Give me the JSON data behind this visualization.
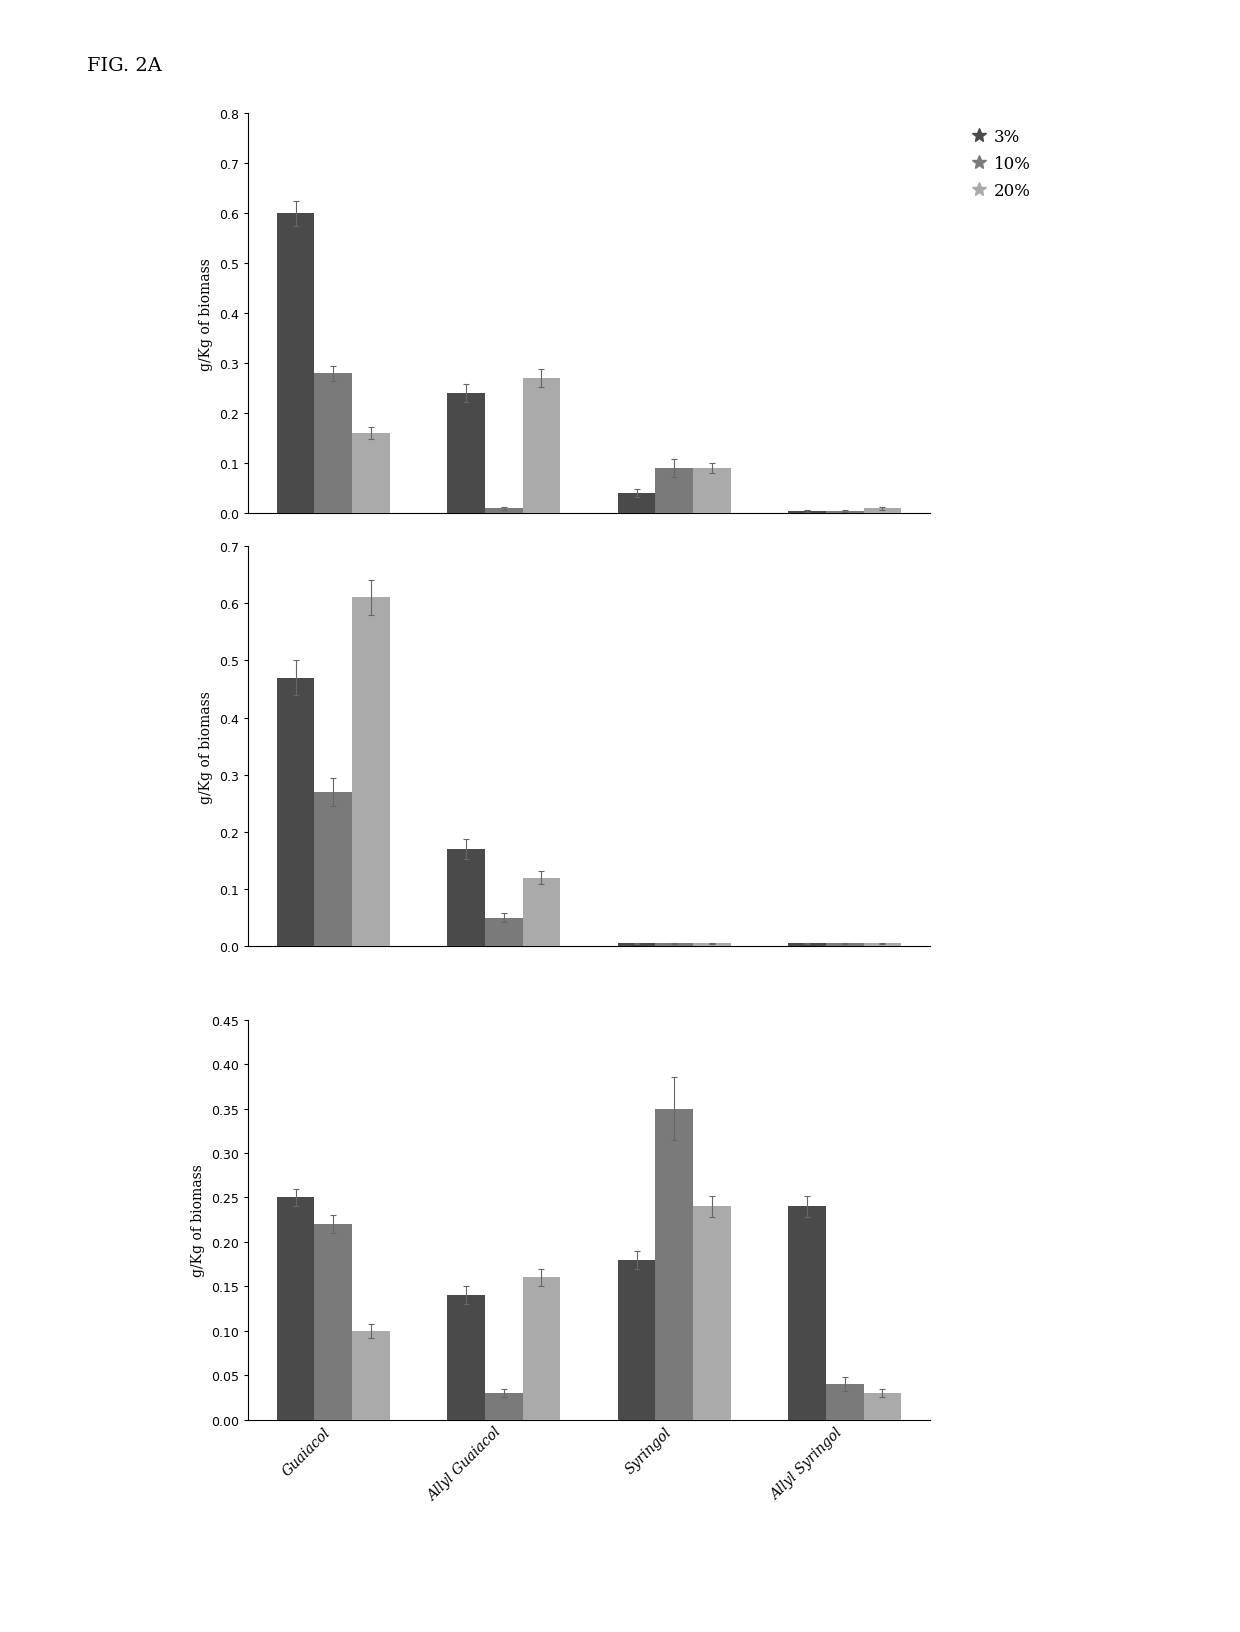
{
  "categories": [
    "Guaiacol",
    "Allyl Guaiacol",
    "Syringol",
    "Allyl Syringol"
  ],
  "legend_labels": [
    "3%",
    "10%",
    "20%"
  ],
  "bar_colors": [
    "#4a4a4a",
    "#7a7a7a",
    "#aaaaaa"
  ],
  "subplot1": {
    "ylim": [
      0,
      0.8
    ],
    "yticks": [
      0,
      0.1,
      0.2,
      0.3,
      0.4,
      0.5,
      0.6,
      0.7,
      0.8
    ],
    "ylabel": "g/Kg of biomass",
    "values": [
      [
        0.6,
        0.28,
        0.16
      ],
      [
        0.24,
        0.01,
        0.27
      ],
      [
        0.04,
        0.09,
        0.09
      ],
      [
        0.005,
        0.005,
        0.01
      ]
    ],
    "errors": [
      [
        0.025,
        0.015,
        0.012
      ],
      [
        0.018,
        0.003,
        0.018
      ],
      [
        0.008,
        0.018,
        0.01
      ],
      [
        0.002,
        0.002,
        0.003
      ]
    ]
  },
  "subplot2": {
    "ylim": [
      0,
      0.7
    ],
    "yticks": [
      0,
      0.1,
      0.2,
      0.3,
      0.4,
      0.5,
      0.6,
      0.7
    ],
    "ylabel": "g/Kg of biomass",
    "values": [
      [
        0.47,
        0.27,
        0.61
      ],
      [
        0.17,
        0.05,
        0.12
      ],
      [
        0.005,
        0.005,
        0.005
      ],
      [
        0.005,
        0.005,
        0.005
      ]
    ],
    "errors": [
      [
        0.03,
        0.025,
        0.03
      ],
      [
        0.018,
        0.008,
        0.012
      ],
      [
        0.001,
        0.001,
        0.001
      ],
      [
        0.001,
        0.001,
        0.001
      ]
    ]
  },
  "subplot3": {
    "ylim": [
      0,
      0.45
    ],
    "yticks": [
      0,
      0.05,
      0.1,
      0.15,
      0.2,
      0.25,
      0.3,
      0.35,
      0.4,
      0.45
    ],
    "ylabel": "g/Kg of biomass",
    "values": [
      [
        0.25,
        0.22,
        0.1
      ],
      [
        0.14,
        0.03,
        0.16
      ],
      [
        0.18,
        0.35,
        0.24
      ],
      [
        0.24,
        0.04,
        0.03
      ]
    ],
    "errors": [
      [
        0.01,
        0.01,
        0.008
      ],
      [
        0.01,
        0.005,
        0.01
      ],
      [
        0.01,
        0.035,
        0.012
      ],
      [
        0.012,
        0.008,
        0.005
      ]
    ]
  },
  "figure_label": "FIG. 2A",
  "background_color": "#ffffff",
  "bar_width": 0.22,
  "legend_marker": "*"
}
